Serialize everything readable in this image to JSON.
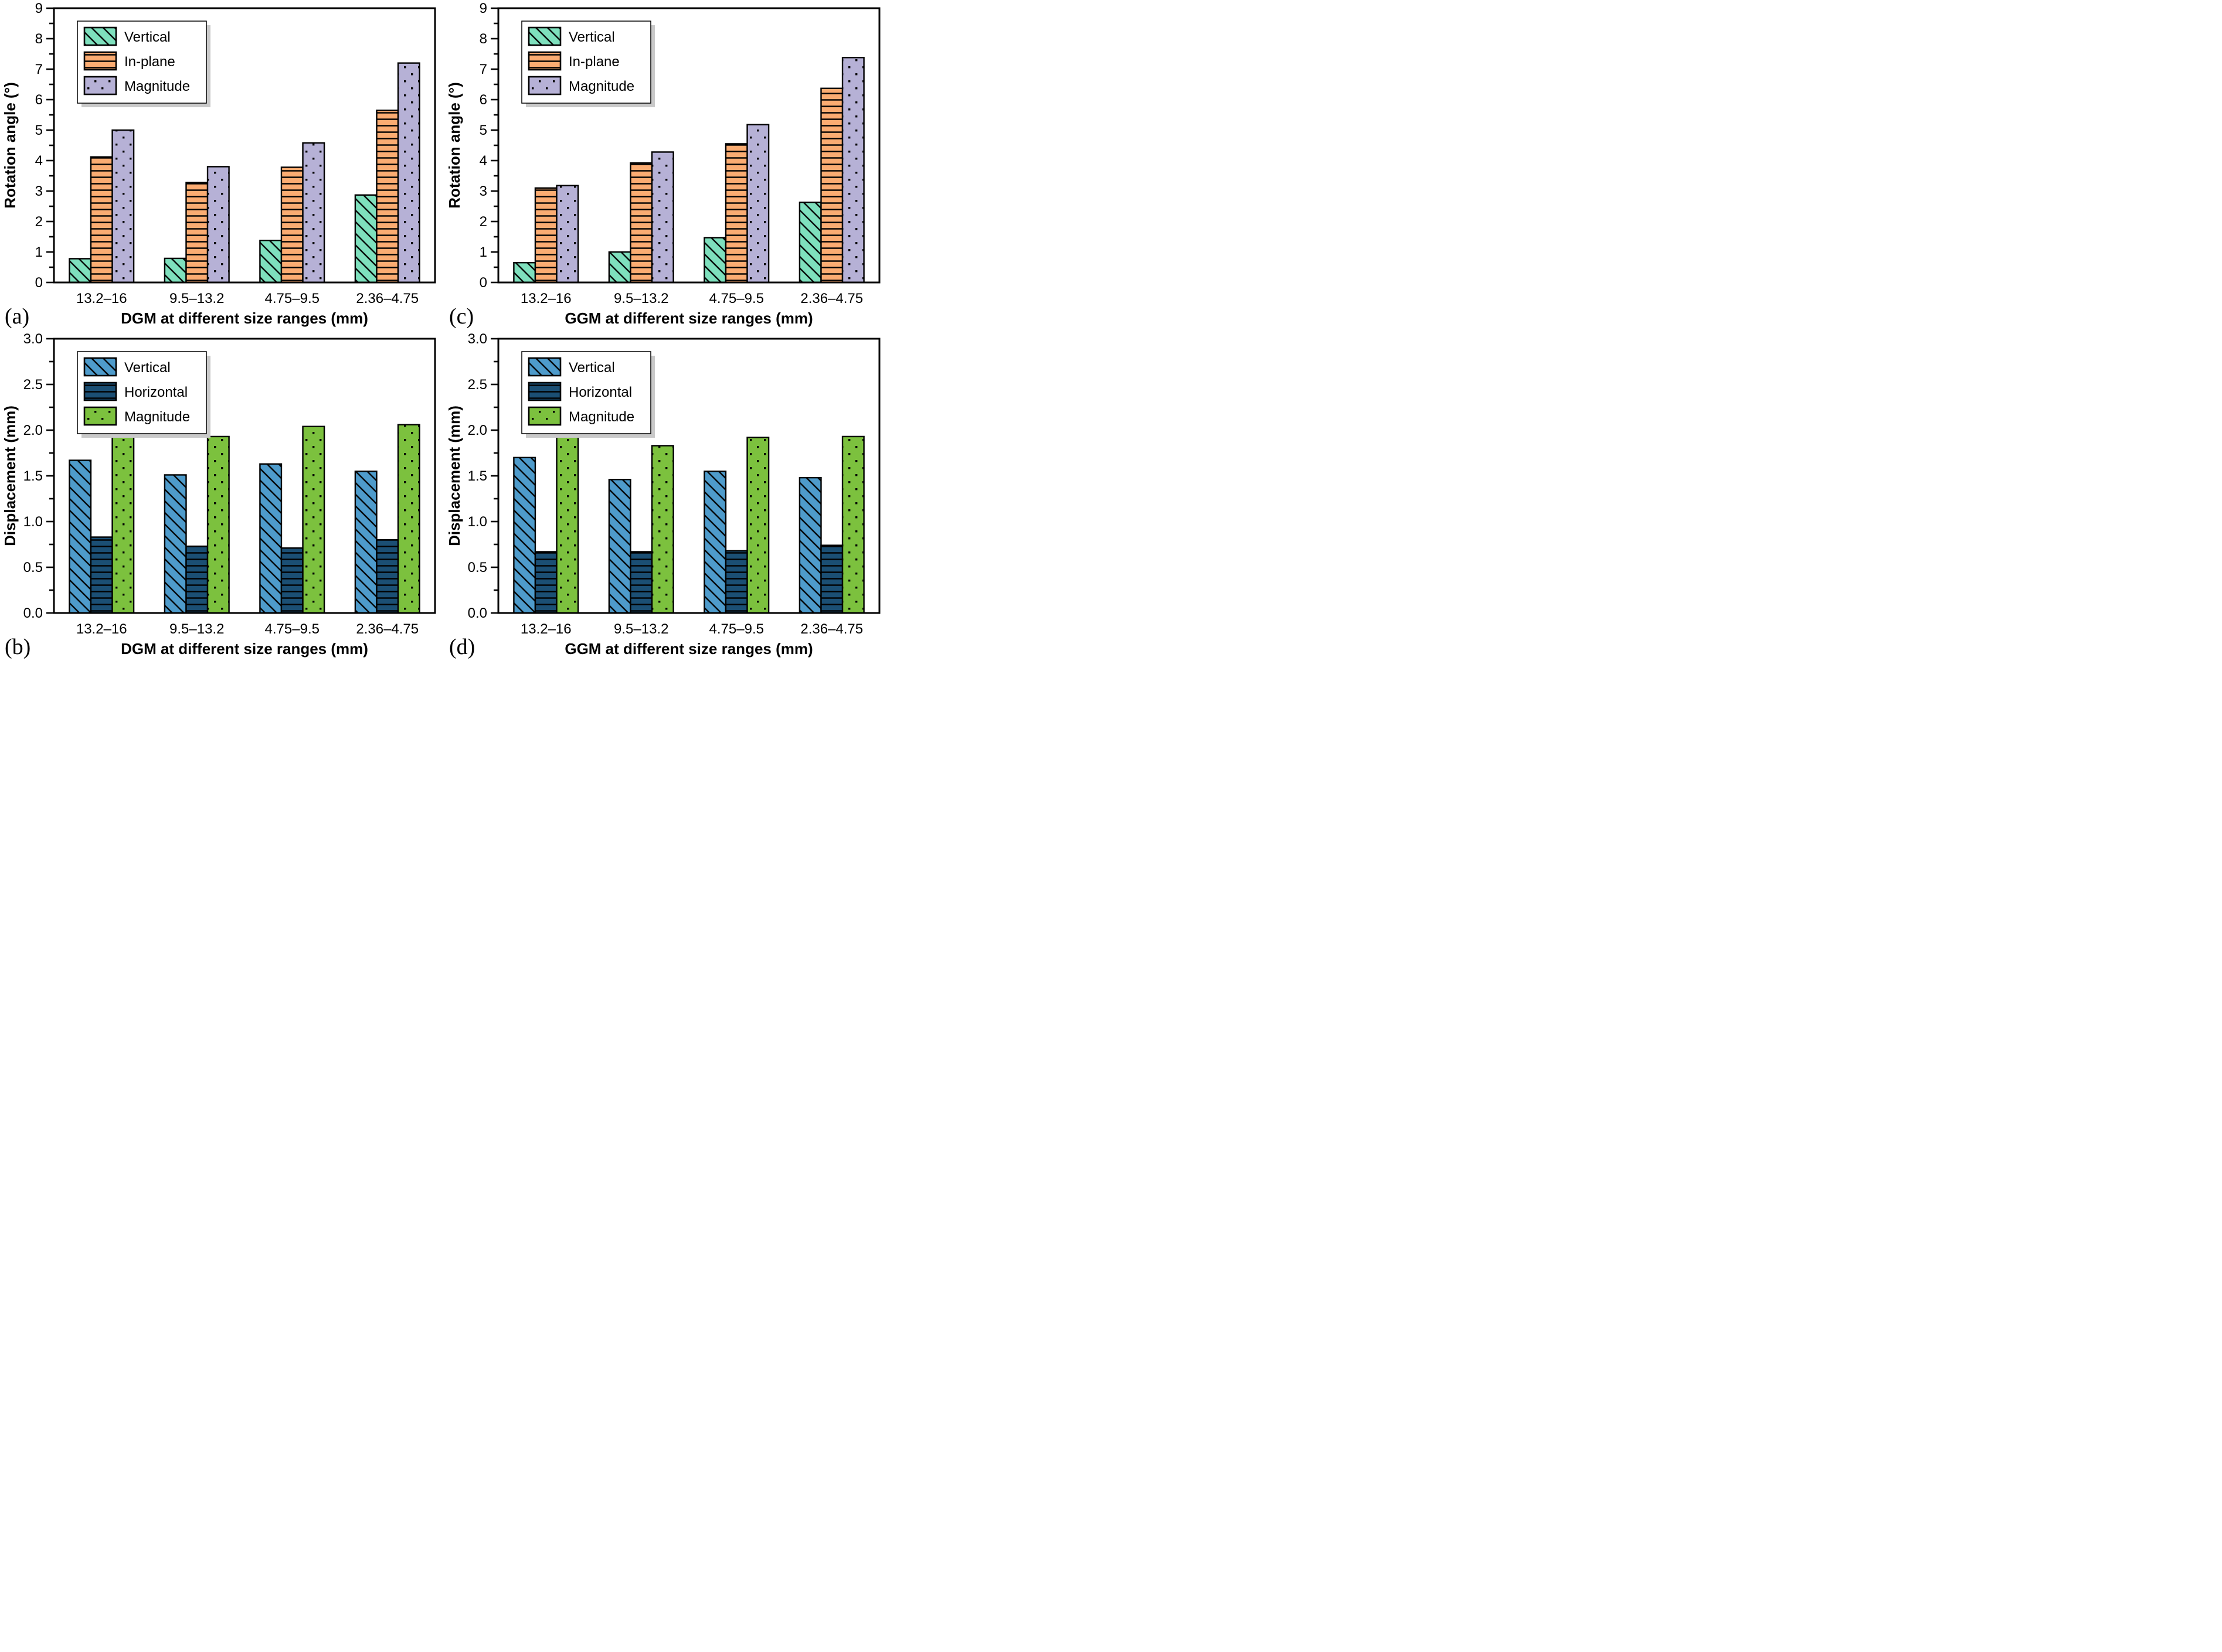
{
  "figure": {
    "background": "#ffffff",
    "edge_color": "#000000",
    "panel_order": [
      "a",
      "c",
      "b",
      "d"
    ]
  },
  "chart_data": [
    {
      "id": "a",
      "type": "bar",
      "panel_label": "(a)",
      "title": "",
      "xlabel": "DGM at different size ranges (mm)",
      "ylabel": "Rotation angle (°)",
      "categories": [
        "13.2–16",
        "9.5–13.2",
        "4.75–9.5",
        "2.36–4.75"
      ],
      "series": [
        {
          "name": "Vertical",
          "values": [
            0.78,
            0.79,
            1.38,
            2.87
          ],
          "fill": "#7ee0bd",
          "hatch": "diagonal"
        },
        {
          "name": "In-plane",
          "values": [
            4.12,
            3.28,
            3.78,
            5.65
          ],
          "fill": "#fbac72",
          "hatch": "horizontal"
        },
        {
          "name": "Magnitude",
          "values": [
            5.0,
            3.8,
            4.58,
            7.2
          ],
          "fill": "#b6b1d6",
          "hatch": "dots"
        }
      ],
      "ylim": [
        0,
        9
      ],
      "ytick_step": 1,
      "minor_tick_step": 0.5,
      "ytick_labels": [
        "0",
        "1",
        "2",
        "3",
        "4",
        "5",
        "6",
        "7",
        "8",
        "9"
      ],
      "legend_position": "top-left",
      "grid": false
    },
    {
      "id": "b",
      "type": "bar",
      "panel_label": "(b)",
      "title": "",
      "xlabel": "DGM at different size ranges (mm)",
      "ylabel": "Displacement (mm)",
      "categories": [
        "13.2–16",
        "9.5–13.2",
        "4.75–9.5",
        "2.36–4.75"
      ],
      "series": [
        {
          "name": "Vertical",
          "values": [
            1.67,
            1.51,
            1.63,
            1.55
          ],
          "fill": "#4e9bcb",
          "hatch": "diagonal"
        },
        {
          "name": "Horizontal",
          "values": [
            0.83,
            0.73,
            0.71,
            0.8
          ],
          "fill": "#1b4f74",
          "hatch": "horizontal"
        },
        {
          "name": "Magnitude",
          "values": [
            2.02,
            1.93,
            2.04,
            2.06
          ],
          "fill": "#7cc13e",
          "hatch": "dots"
        }
      ],
      "ylim": [
        0,
        3
      ],
      "ytick_step": 0.5,
      "minor_tick_step": 0.25,
      "ytick_labels": [
        "0.0",
        "0.5",
        "1.0",
        "1.5",
        "2.0",
        "2.5",
        "3.0"
      ],
      "legend_position": "top-left",
      "grid": false
    },
    {
      "id": "c",
      "type": "bar",
      "panel_label": "(c)",
      "title": "",
      "xlabel": "GGM at different size ranges (mm)",
      "ylabel": "Rotation angle (°)",
      "categories": [
        "13.2–16",
        "9.5–13.2",
        "4.75–9.5",
        "2.36–4.75"
      ],
      "series": [
        {
          "name": "Vertical",
          "values": [
            0.65,
            1.0,
            1.47,
            2.63
          ],
          "fill": "#7ee0bd",
          "hatch": "diagonal"
        },
        {
          "name": "In-plane",
          "values": [
            3.1,
            3.92,
            4.55,
            6.37
          ],
          "fill": "#fbac72",
          "hatch": "horizontal"
        },
        {
          "name": "Magnitude",
          "values": [
            3.18,
            4.28,
            5.18,
            7.38
          ],
          "fill": "#b6b1d6",
          "hatch": "dots"
        }
      ],
      "ylim": [
        0,
        9
      ],
      "ytick_step": 1,
      "minor_tick_step": 0.5,
      "ytick_labels": [
        "0",
        "1",
        "2",
        "3",
        "4",
        "5",
        "6",
        "7",
        "8",
        "9"
      ],
      "legend_position": "top-left",
      "grid": false
    },
    {
      "id": "d",
      "type": "bar",
      "panel_label": "(d)",
      "title": "",
      "xlabel": "GGM at different size ranges (mm)",
      "ylabel": "Displacement (mm)",
      "categories": [
        "13.2–16",
        "9.5–13.2",
        "4.75–9.5",
        "2.36–4.75"
      ],
      "series": [
        {
          "name": "Vertical",
          "values": [
            1.7,
            1.46,
            1.55,
            1.48
          ],
          "fill": "#4e9bcb",
          "hatch": "diagonal"
        },
        {
          "name": "Horizontal",
          "values": [
            0.67,
            0.67,
            0.68,
            0.74
          ],
          "fill": "#1b4f74",
          "hatch": "horizontal"
        },
        {
          "name": "Magnitude",
          "values": [
            1.98,
            1.83,
            1.92,
            1.93
          ],
          "fill": "#7cc13e",
          "hatch": "dots"
        }
      ],
      "ylim": [
        0,
        3
      ],
      "ytick_step": 0.5,
      "minor_tick_step": 0.25,
      "ytick_labels": [
        "0.0",
        "0.5",
        "1.0",
        "1.5",
        "2.0",
        "2.5",
        "3.0"
      ],
      "legend_position": "top-left",
      "grid": false
    }
  ]
}
